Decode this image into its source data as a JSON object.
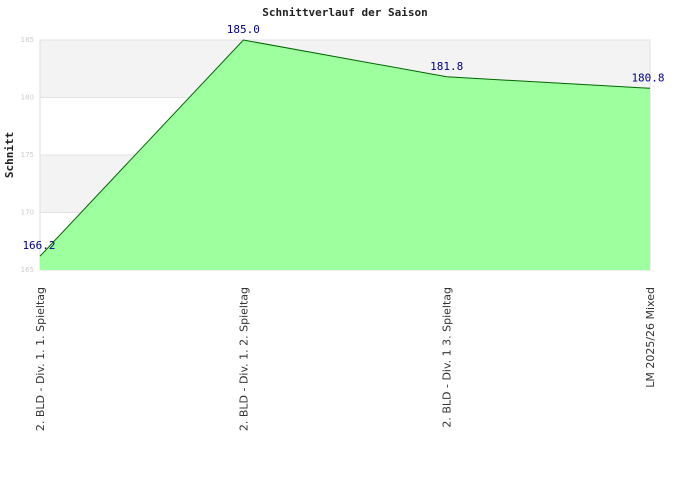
{
  "chart_data": {
    "type": "area",
    "title": "Schnittverlauf der Saison",
    "y_label": "Schnitt",
    "categories": [
      "2. BLD - Div. 1. 1. Spieltag",
      "2. BLD - Div. 1. 2. Spieltag",
      "2. BLD - Div. 1  3. Spieltag",
      "LM 2025/26 Mixed"
    ],
    "values": [
      166.2,
      185,
      181.8,
      180.8
    ],
    "value_labels": [
      "166.2",
      "185.0",
      "181.8",
      "180.8"
    ],
    "color": "#99ff99",
    "line_color": "#006600",
    "ylim": [
      165,
      185
    ],
    "yticks": [
      165,
      170,
      175,
      180,
      185
    ],
    "grid": true
  }
}
